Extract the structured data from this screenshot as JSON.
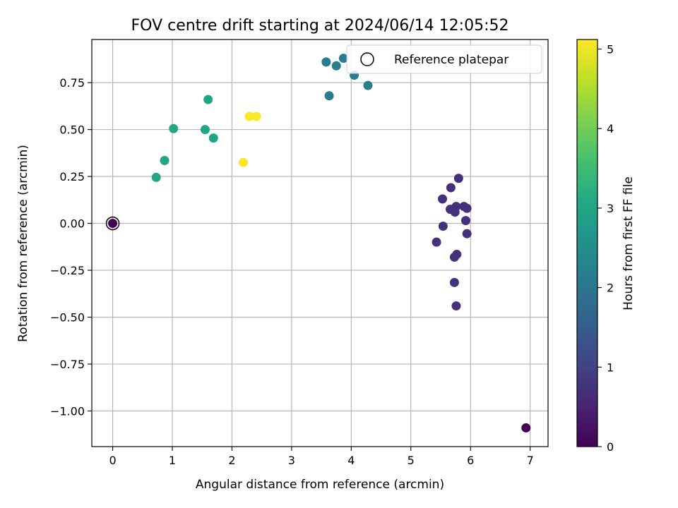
{
  "chart_data": {
    "type": "scatter",
    "title": "FOV centre drift starting at 2024/06/14 12:05:52",
    "xlabel": "Angular distance from reference (arcmin)",
    "ylabel": "Rotation from reference (arcmin)",
    "xlim": [
      -0.35,
      7.3
    ],
    "ylim": [
      -1.19,
      0.98
    ],
    "xticks": [
      0,
      1,
      2,
      3,
      4,
      5,
      6,
      7
    ],
    "xtick_labels": [
      "0",
      "1",
      "2",
      "3",
      "4",
      "5",
      "6",
      "7"
    ],
    "yticks": [
      0.75,
      0.5,
      0.25,
      0.0,
      -0.25,
      -0.5,
      -0.75,
      -1.0
    ],
    "ytick_labels": [
      "0.75",
      "0.50",
      "0.25",
      "0.00",
      "−0.25",
      "−0.50",
      "−0.75",
      "−1.00"
    ],
    "grid": true,
    "legend": {
      "label": "Reference platepar",
      "position": "top-right",
      "marker": "hollow-circle"
    },
    "colorbar": {
      "label": "Hours from first FF file",
      "colormap": "viridis",
      "range": [
        0,
        5.12
      ],
      "ticks": [
        0,
        1,
        2,
        3,
        4,
        5
      ],
      "tick_labels": [
        "0",
        "1",
        "2",
        "3",
        "4",
        "5"
      ]
    },
    "reference_point": {
      "x": 0.0,
      "y": 0.0
    },
    "points": [
      {
        "x": 0.0,
        "y": 0.0,
        "hours": 0.0
      },
      {
        "x": 6.93,
        "y": -1.09,
        "hours": 0.0
      },
      {
        "x": 5.8,
        "y": 0.24,
        "hours": 0.7
      },
      {
        "x": 5.67,
        "y": 0.19,
        "hours": 0.7
      },
      {
        "x": 5.53,
        "y": 0.13,
        "hours": 0.7
      },
      {
        "x": 5.66,
        "y": 0.075,
        "hours": 0.7
      },
      {
        "x": 5.76,
        "y": 0.09,
        "hours": 0.7
      },
      {
        "x": 5.74,
        "y": 0.06,
        "hours": 0.7
      },
      {
        "x": 5.89,
        "y": 0.09,
        "hours": 0.7
      },
      {
        "x": 5.94,
        "y": 0.08,
        "hours": 0.7
      },
      {
        "x": 5.92,
        "y": 0.015,
        "hours": 0.7
      },
      {
        "x": 5.54,
        "y": -0.015,
        "hours": 0.7
      },
      {
        "x": 5.94,
        "y": -0.055,
        "hours": 0.7
      },
      {
        "x": 5.43,
        "y": -0.1,
        "hours": 0.7
      },
      {
        "x": 5.77,
        "y": -0.165,
        "hours": 0.7
      },
      {
        "x": 5.73,
        "y": -0.18,
        "hours": 0.7
      },
      {
        "x": 5.73,
        "y": -0.315,
        "hours": 0.7
      },
      {
        "x": 5.76,
        "y": -0.44,
        "hours": 0.7
      },
      {
        "x": 3.87,
        "y": 0.88,
        "hours": 2.1
      },
      {
        "x": 3.58,
        "y": 0.86,
        "hours": 2.1
      },
      {
        "x": 3.75,
        "y": 0.84,
        "hours": 2.1
      },
      {
        "x": 4.05,
        "y": 0.79,
        "hours": 2.1
      },
      {
        "x": 4.28,
        "y": 0.735,
        "hours": 2.1
      },
      {
        "x": 3.63,
        "y": 0.68,
        "hours": 2.1
      },
      {
        "x": 1.6,
        "y": 0.66,
        "hours": 3.0
      },
      {
        "x": 1.02,
        "y": 0.505,
        "hours": 3.0
      },
      {
        "x": 1.55,
        "y": 0.5,
        "hours": 3.0
      },
      {
        "x": 1.69,
        "y": 0.455,
        "hours": 3.0
      },
      {
        "x": 0.87,
        "y": 0.335,
        "hours": 3.0
      },
      {
        "x": 0.73,
        "y": 0.245,
        "hours": 3.0
      },
      {
        "x": 2.29,
        "y": 0.57,
        "hours": 5.1
      },
      {
        "x": 2.41,
        "y": 0.57,
        "hours": 5.1
      },
      {
        "x": 2.19,
        "y": 0.325,
        "hours": 5.1
      }
    ]
  }
}
